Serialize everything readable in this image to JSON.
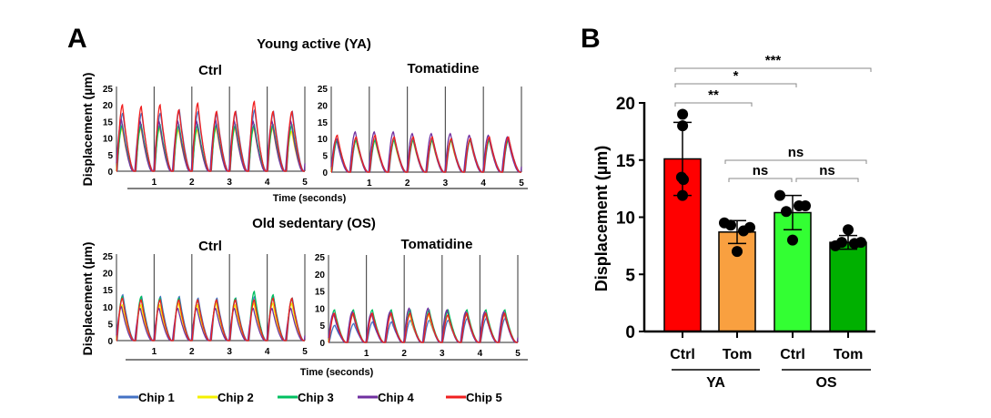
{
  "panel_labels": {
    "a": "A",
    "b": "B"
  },
  "legend": [
    {
      "name": "Chip 1",
      "color": "#4472c4"
    },
    {
      "name": "Chip 2",
      "color": "#f5f000"
    },
    {
      "name": "Chip 3",
      "color": "#00c060"
    },
    {
      "name": "Chip 4",
      "color": "#7030a0"
    },
    {
      "name": "Chip 5",
      "color": "#f02020"
    }
  ],
  "chart_data": [
    {
      "type": "line",
      "group_title": "Young active (YA)",
      "title": "Ctrl",
      "ylabel": "Displacement (µm)",
      "xlabel": "Time (seconds)",
      "xlim": [
        0,
        5
      ],
      "ylim": [
        0,
        25
      ],
      "yticks": [
        "0",
        "5",
        "10",
        "15",
        "20",
        "25"
      ],
      "xticks": [
        "1",
        "2",
        "3",
        "4",
        "5"
      ],
      "series": [
        {
          "name": "Chip 1",
          "peaks": [
            17.5,
            17.5,
            17.5,
            18.5,
            18,
            17.5,
            18,
            18.5,
            18,
            18
          ]
        },
        {
          "name": "Chip 2",
          "peaks": [
            13,
            13,
            13,
            12.5,
            12.5,
            13,
            13,
            13,
            13,
            12
          ]
        },
        {
          "name": "Chip 3",
          "peaks": [
            14,
            14,
            14,
            14,
            14,
            14,
            14,
            14,
            14,
            14
          ]
        },
        {
          "name": "Chip 4",
          "peaks": [
            15.5,
            15,
            15,
            15,
            15,
            15.5,
            15,
            15,
            15,
            15
          ]
        },
        {
          "name": "Chip 5",
          "peaks": [
            20,
            19.5,
            20,
            18.5,
            20.5,
            18,
            18,
            21,
            18,
            18
          ]
        }
      ]
    },
    {
      "type": "line",
      "group_title": "Young active (YA)",
      "title": "Tomatidine",
      "xlabel": "Time (seconds)",
      "xlim": [
        0,
        5
      ],
      "ylim": [
        0,
        25
      ],
      "yticks": [
        "0",
        "5",
        "10",
        "15",
        "20",
        "25"
      ],
      "xticks": [
        "1",
        "2",
        "3",
        "4",
        "5"
      ],
      "series": [
        {
          "name": "Chip 1",
          "peaks": [
            10,
            10,
            10,
            10,
            10,
            10,
            10,
            10,
            10,
            10
          ]
        },
        {
          "name": "Chip 2",
          "peaks": [
            9.5,
            9.5,
            9.5,
            9.5,
            9.5,
            9.5,
            9.5,
            9.5,
            9.5,
            9.5
          ]
        },
        {
          "name": "Chip 3",
          "peaks": [
            9.5,
            9.5,
            9.5,
            9.5,
            9.5,
            9.5,
            9.5,
            9.5,
            9.5,
            9.5
          ]
        },
        {
          "name": "Chip 4",
          "peaks": [
            10,
            12,
            12,
            12,
            11.5,
            11.5,
            11.5,
            11,
            11,
            10.5
          ]
        },
        {
          "name": "Chip 5",
          "peaks": [
            11,
            10.5,
            11,
            10.5,
            10.5,
            10.5,
            10,
            10,
            10.5,
            10.5
          ]
        }
      ]
    },
    {
      "type": "line",
      "group_title": "Old sedentary  (OS)",
      "title": "Ctrl",
      "ylabel": "Displacement (µm)",
      "xlabel": "Time (seconds)",
      "xlim": [
        0,
        5
      ],
      "ylim": [
        0,
        25
      ],
      "yticks": [
        "0",
        "5",
        "10",
        "15",
        "20",
        "25"
      ],
      "xticks": [
        "1",
        "2",
        "3",
        "4",
        "5"
      ],
      "series": [
        {
          "name": "Chip 1",
          "peaks": [
            13.5,
            13,
            13,
            13,
            12.5,
            12.5,
            12.5,
            13,
            13,
            12.5
          ]
        },
        {
          "name": "Chip 2",
          "peaks": [
            10.5,
            10.5,
            10.5,
            11,
            10.5,
            11,
            10.5,
            11,
            11,
            11
          ]
        },
        {
          "name": "Chip 3",
          "peaks": [
            13,
            13,
            12.5,
            12.5,
            12,
            12,
            12.5,
            14.5,
            13.5,
            12.5
          ]
        },
        {
          "name": "Chip 4",
          "peaks": [
            10,
            9.5,
            9.5,
            9.5,
            9.5,
            9.5,
            9.5,
            9.5,
            9.5,
            9.5
          ]
        },
        {
          "name": "Chip 5",
          "peaks": [
            12.5,
            12,
            12,
            12,
            12,
            12,
            12,
            12,
            12.5,
            12.5
          ]
        }
      ]
    },
    {
      "type": "line",
      "group_title": "Old sedentary  (OS)",
      "title": "Tomatidine",
      "xlabel": "Time (seconds)",
      "xlim": [
        0,
        5
      ],
      "ylim": [
        0,
        25
      ],
      "yticks": [
        "0",
        "5",
        "10",
        "15",
        "20",
        "25"
      ],
      "xticks": [
        "1",
        "2",
        "3",
        "4",
        "5"
      ],
      "series": [
        {
          "name": "Chip 1",
          "peaks": [
            5,
            5.5,
            6,
            6,
            6.5,
            6.5,
            6.5,
            7,
            7,
            7
          ]
        },
        {
          "name": "Chip 2",
          "peaks": [
            8,
            8,
            8,
            8,
            8,
            8,
            8,
            8,
            8,
            8
          ]
        },
        {
          "name": "Chip 3",
          "peaks": [
            9.5,
            9.5,
            9.5,
            9.5,
            9.5,
            9.5,
            9.5,
            9.5,
            9.5,
            9.5
          ]
        },
        {
          "name": "Chip 4",
          "peaks": [
            8.5,
            9,
            8.5,
            9,
            10,
            10,
            9.5,
            9,
            9,
            9
          ]
        },
        {
          "name": "Chip 5",
          "peaks": [
            8.5,
            8.5,
            8.5,
            8.5,
            8.5,
            8.5,
            8,
            8.5,
            8.5,
            8.5
          ]
        }
      ]
    },
    {
      "type": "bar",
      "ylabel": "Displacement (µm)",
      "ylim": [
        0,
        20
      ],
      "yticks": [
        "0",
        "5",
        "10",
        "15",
        "20"
      ],
      "categories": [
        "Ctrl",
        "Tom",
        "Ctrl",
        "Tom"
      ],
      "groups": [
        {
          "label": "YA",
          "members": [
            0,
            1
          ]
        },
        {
          "label": "OS",
          "members": [
            2,
            3
          ]
        }
      ],
      "values": [
        15.1,
        8.7,
        10.4,
        7.8
      ],
      "sd": [
        3.2,
        1.0,
        1.5,
        0.6
      ],
      "colors": [
        "#ff0000",
        "#f9a040",
        "#33ff33",
        "#00b000"
      ],
      "points": [
        [
          19.0,
          18.0,
          13.5,
          13.3,
          11.9
        ],
        [
          9.5,
          9.1,
          9.3,
          8.8,
          7.0
        ],
        [
          11.9,
          11.0,
          10.5,
          11.0,
          8.0
        ],
        [
          7.5,
          7.8,
          7.8,
          7.7,
          8.9
        ]
      ],
      "significance": [
        {
          "from": 0,
          "to": 3,
          "label": "***"
        },
        {
          "from": 0,
          "to": 2,
          "label": "*"
        },
        {
          "from": 0,
          "to": 1,
          "label": "**"
        },
        {
          "from": 1,
          "to": 3,
          "label": "ns"
        },
        {
          "from": 1,
          "to": 2,
          "label": "ns"
        },
        {
          "from": 2,
          "to": 3,
          "label": "ns"
        }
      ]
    }
  ]
}
